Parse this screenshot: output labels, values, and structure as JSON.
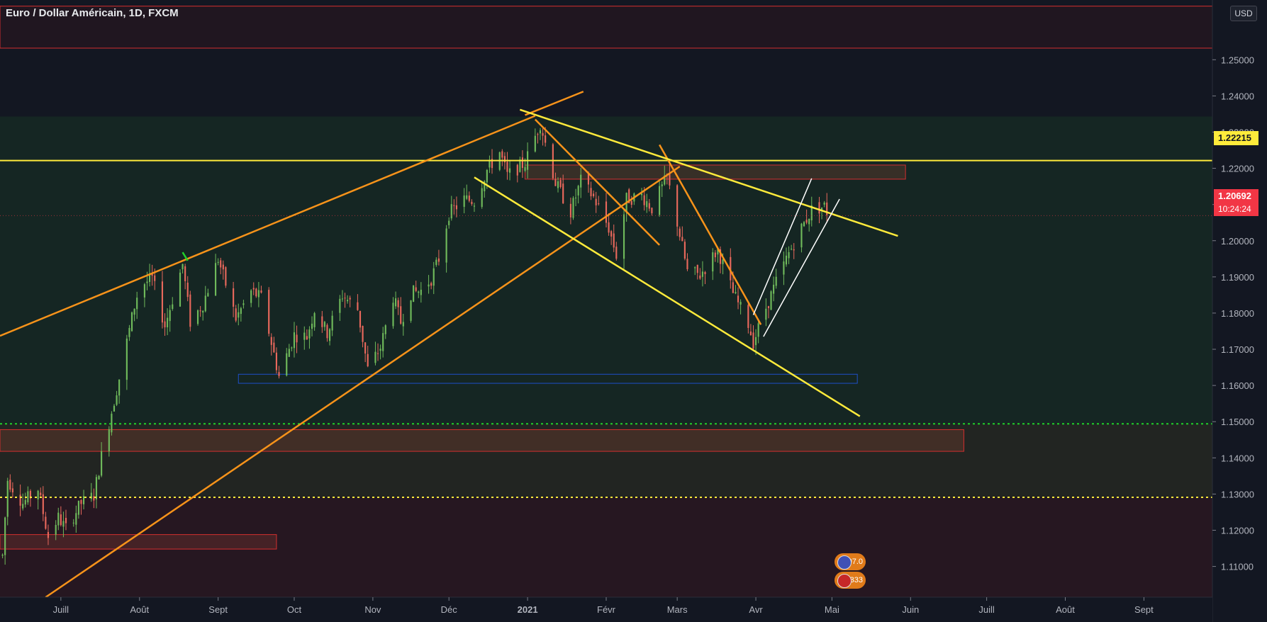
{
  "header": {
    "title": "Euro / Dollar Américain, 1D, FXCM",
    "currency_button": "USD"
  },
  "badges": {
    "level_label": "1.22215",
    "last_price": "1.20692",
    "countdown": "10:24:24"
  },
  "events": [
    {
      "label": "107.0",
      "flag": "eu-flag-icon"
    },
    {
      "label": "6.333",
      "flag": "us-flag-icon"
    }
  ],
  "colors": {
    "background": "#131722",
    "up": "#6fba5b",
    "down": "#e8685c",
    "orange": "#f7931a",
    "yellow": "#ffeb3b",
    "white": "#ffffff",
    "green_dotted": "#22d12a",
    "red_box": "#d32f2f",
    "blue_box": "#1e50c8"
  },
  "chart_data": {
    "type": "candlestick",
    "title": "Euro / Dollar Américain, 1D, FXCM",
    "y_ticks": [
      1.25,
      1.24,
      1.23,
      1.22,
      1.21,
      1.2,
      1.19,
      1.18,
      1.17,
      1.16,
      1.15,
      1.14,
      1.13,
      1.12,
      1.11
    ],
    "y_tick_labels": [
      "1.25000",
      "1.24000",
      "1.23000",
      "1.22000",
      "1.21000",
      "1.20000",
      "1.19000",
      "1.18000",
      "1.17000",
      "1.16000",
      "1.15000",
      "1.14000",
      "1.13000",
      "1.12000",
      "1.11000"
    ],
    "x_ticks": [
      {
        "label": "Juill",
        "date": "2020-07-01",
        "bold": false
      },
      {
        "label": "Août",
        "date": "2020-08-01",
        "bold": false
      },
      {
        "label": "Sept",
        "date": "2020-09-01",
        "bold": false
      },
      {
        "label": "Oct",
        "date": "2020-10-01",
        "bold": false
      },
      {
        "label": "Nov",
        "date": "2020-11-01",
        "bold": false
      },
      {
        "label": "Déc",
        "date": "2020-12-01",
        "bold": false
      },
      {
        "label": "2021",
        "date": "2021-01-01",
        "bold": true
      },
      {
        "label": "Févr",
        "date": "2021-02-01",
        "bold": false
      },
      {
        "label": "Mars",
        "date": "2021-03-01",
        "bold": false
      },
      {
        "label": "Avr",
        "date": "2021-04-01",
        "bold": false
      },
      {
        "label": "Mai",
        "date": "2021-05-01",
        "bold": false
      },
      {
        "label": "Juin",
        "date": "2021-06-01",
        "bold": false
      },
      {
        "label": "Juill",
        "date": "2021-07-01",
        "bold": false
      },
      {
        "label": "Août",
        "date": "2021-08-01",
        "bold": false
      },
      {
        "label": "Sept",
        "date": "2021-09-01",
        "bold": false
      }
    ],
    "x_range": [
      "2020-06-07",
      "2021-09-28"
    ],
    "y_range": [
      1.1015,
      1.2665
    ],
    "last_price": 1.20692,
    "price_path": [
      [
        "2020-06-08",
        1.113
      ],
      [
        "2020-06-10",
        1.134
      ],
      [
        "2020-06-16",
        1.1275
      ],
      [
        "2020-06-22",
        1.1315
      ],
      [
        "2020-06-26",
        1.1182
      ],
      [
        "2020-06-30",
        1.1235
      ],
      [
        "2020-07-03",
        1.1205
      ],
      [
        "2020-07-09",
        1.1275
      ],
      [
        "2020-07-14",
        1.1296
      ],
      [
        "2020-07-17",
        1.1405
      ],
      [
        "2020-07-24",
        1.162
      ],
      [
        "2020-07-30",
        1.182
      ],
      [
        "2020-08-01",
        1.1875
      ],
      [
        "2020-08-06",
        1.1895
      ],
      [
        "2020-08-11",
        1.1765
      ],
      [
        "2020-08-18",
        1.1935
      ],
      [
        "2020-08-21",
        1.1775
      ],
      [
        "2020-08-26",
        1.1825
      ],
      [
        "2020-09-01",
        1.195
      ],
      [
        "2020-09-08",
        1.1785
      ],
      [
        "2020-09-14",
        1.186
      ],
      [
        "2020-09-18",
        1.1842
      ],
      [
        "2020-09-25",
        1.1625
      ],
      [
        "2020-10-01",
        1.174
      ],
      [
        "2020-10-06",
        1.1735
      ],
      [
        "2020-10-09",
        1.181
      ],
      [
        "2020-10-14",
        1.1745
      ],
      [
        "2020-10-20",
        1.185
      ],
      [
        "2020-10-26",
        1.181
      ],
      [
        "2020-10-30",
        1.1645
      ],
      [
        "2020-11-04",
        1.1705
      ],
      [
        "2020-11-09",
        1.1845
      ],
      [
        "2020-11-12",
        1.1775
      ],
      [
        "2020-11-16",
        1.1855
      ],
      [
        "2020-11-20",
        1.1862
      ],
      [
        "2020-11-24",
        1.1895
      ],
      [
        "2020-11-27",
        1.195
      ],
      [
        "2020-12-01",
        1.2075
      ],
      [
        "2020-12-07",
        1.2115
      ],
      [
        "2020-12-11",
        1.211
      ],
      [
        "2020-12-16",
        1.2195
      ],
      [
        "2020-12-21",
        1.2245
      ],
      [
        "2020-12-24",
        1.218
      ],
      [
        "2020-12-31",
        1.2215
      ],
      [
        "2021-01-06",
        1.2325
      ],
      [
        "2021-01-12",
        1.216
      ],
      [
        "2021-01-18",
        1.208
      ],
      [
        "2021-01-22",
        1.2165
      ],
      [
        "2021-01-27",
        1.212
      ],
      [
        "2021-02-02",
        1.2035
      ],
      [
        "2021-02-05",
        1.196
      ],
      [
        "2021-02-09",
        1.2115
      ],
      [
        "2021-02-15",
        1.2125
      ],
      [
        "2021-02-19",
        1.209
      ],
      [
        "2021-02-25",
        1.2175
      ],
      [
        "2021-03-01",
        1.205
      ],
      [
        "2021-03-05",
        1.1915
      ],
      [
        "2021-03-10",
        1.1905
      ],
      [
        "2021-03-17",
        1.1975
      ],
      [
        "2021-03-23",
        1.1855
      ],
      [
        "2021-03-29",
        1.177
      ],
      [
        "2021-03-31",
        1.172
      ],
      [
        "2021-04-05",
        1.1815
      ],
      [
        "2021-04-09",
        1.1885
      ],
      [
        "2021-04-14",
        1.1965
      ],
      [
        "2021-04-19",
        1.2035
      ],
      [
        "2021-04-23",
        1.2085
      ],
      [
        "2021-04-28",
        1.2095
      ],
      [
        "2021-04-30",
        1.2065
      ]
    ],
    "annotations": {
      "horizontal_lines": [
        {
          "price": 1.22215,
          "color": "yellow",
          "style": "solid",
          "label": "1.22215"
        },
        {
          "price": 1.1494,
          "color": "green",
          "style": "dotted"
        },
        {
          "price": 1.1291,
          "color": "yellow",
          "style": "dotted"
        },
        {
          "price": 1.20692,
          "color": "red",
          "style": "dotted"
        }
      ],
      "rectangles": [
        {
          "from": "2020-06-07",
          "to": "2021-09-28",
          "top": 1.2648,
          "bottom": 1.2532,
          "color": "red",
          "fill": "dark"
        },
        {
          "from": "2020-06-07",
          "to": "2021-09-28",
          "top": 1.2343,
          "bottom": 1.1494,
          "color": "none",
          "fill": "green"
        },
        {
          "from": "2020-06-07",
          "to": "2021-09-28",
          "top": 1.1494,
          "bottom": 1.1291,
          "color": "none",
          "fill": "olive"
        },
        {
          "from": "2020-06-07",
          "to": "2021-09-28",
          "top": 1.1291,
          "bottom": 1.1015,
          "color": "none",
          "fill": "maroon"
        },
        {
          "from": "2020-12-31",
          "to": "2021-05-30",
          "top": 1.2209,
          "bottom": 1.217,
          "color": "red",
          "fill": "brown"
        },
        {
          "from": "2020-06-07",
          "to": "2021-06-22",
          "top": 1.1478,
          "bottom": 1.1418,
          "color": "red",
          "fill": "brown"
        },
        {
          "from": "2020-06-07",
          "to": "2020-09-24",
          "top": 1.1188,
          "bottom": 1.1148,
          "color": "red",
          "fill": "brown"
        },
        {
          "from": "2020-09-09",
          "to": "2021-05-11",
          "top": 1.1631,
          "bottom": 1.1606,
          "color": "blue",
          "fill": "none"
        }
      ],
      "trend_lines": [
        {
          "color": "orange",
          "from": [
            "2020-06-07",
            1.1737
          ],
          "to": [
            "2021-01-04",
            1.2345
          ]
        },
        {
          "color": "orange",
          "from": [
            "2020-12-31",
            1.2347
          ],
          "to": [
            "2021-01-23",
            1.2412
          ]
        },
        {
          "color": "orange",
          "from": [
            "2020-06-25",
            1.1015
          ],
          "to": [
            "2021-03-02",
            1.2205
          ]
        },
        {
          "color": "orange",
          "from": [
            "2021-01-04",
            1.2335
          ],
          "to": [
            "2021-02-22",
            1.1988
          ]
        },
        {
          "color": "orange",
          "from": [
            "2021-02-22",
            1.2265
          ],
          "to": [
            "2021-04-03",
            1.1768
          ]
        },
        {
          "color": "yellow",
          "from": [
            "2020-12-29",
            1.2362
          ],
          "to": [
            "2021-05-27",
            1.2013
          ]
        },
        {
          "color": "yellow",
          "from": [
            "2020-12-11",
            1.2175
          ],
          "to": [
            "2021-05-12",
            1.1515
          ]
        },
        {
          "color": "white",
          "from": [
            "2021-03-31",
            1.1795
          ],
          "to": [
            "2021-04-23",
            1.2172
          ]
        },
        {
          "color": "white",
          "from": [
            "2021-04-04",
            1.1735
          ],
          "to": [
            "2021-05-04",
            1.2115
          ]
        },
        {
          "color": "green",
          "from": [
            "2020-08-18",
            1.1968
          ],
          "to": [
            "2020-08-20",
            1.1945
          ]
        }
      ]
    }
  }
}
